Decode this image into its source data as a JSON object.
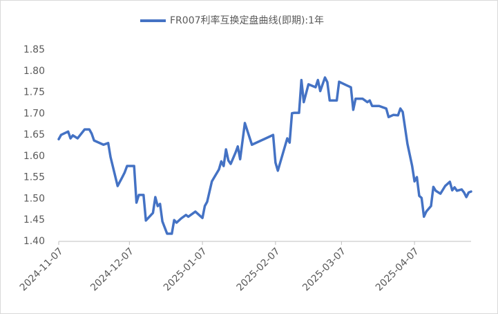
{
  "chart_data": {
    "type": "line",
    "x": [
      "2024-11-07",
      "2024-11-08",
      "2024-11-11",
      "2024-11-12",
      "2024-11-13",
      "2024-11-15",
      "2024-11-18",
      "2024-11-20",
      "2024-11-21",
      "2024-11-22",
      "2024-11-26",
      "2024-11-28",
      "2024-11-29",
      "2024-12-02",
      "2024-12-04",
      "2024-12-05",
      "2024-12-06",
      "2024-12-09",
      "2024-12-10",
      "2024-12-11",
      "2024-12-13",
      "2024-12-14",
      "2024-12-17",
      "2024-12-18",
      "2024-12-19",
      "2024-12-20",
      "2024-12-21",
      "2024-12-23",
      "2024-12-25",
      "2024-12-26",
      "2024-12-27",
      "2024-12-29",
      "2024-12-31",
      "2025-01-01",
      "2025-01-04",
      "2025-01-07",
      "2025-01-08",
      "2025-01-09",
      "2025-01-11",
      "2025-01-14",
      "2025-01-15",
      "2025-01-16",
      "2025-01-17",
      "2025-01-18",
      "2025-01-19",
      "2025-01-21",
      "2025-01-22",
      "2025-01-23",
      "2025-01-25",
      "2025-01-28",
      "2025-02-06",
      "2025-02-07",
      "2025-02-08",
      "2025-02-12",
      "2025-02-13",
      "2025-02-14",
      "2025-02-15",
      "2025-02-17",
      "2025-02-18",
      "2025-02-19",
      "2025-02-21",
      "2025-02-24",
      "2025-02-25",
      "2025-02-26",
      "2025-02-28",
      "2025-03-01",
      "2025-03-02",
      "2025-03-05",
      "2025-03-06",
      "2025-03-09",
      "2025-03-11",
      "2025-03-12",
      "2025-03-13",
      "2025-03-16",
      "2025-03-18",
      "2025-03-19",
      "2025-03-20",
      "2025-03-23",
      "2025-03-26",
      "2025-03-27",
      "2025-03-29",
      "2025-03-31",
      "2025-04-01",
      "2025-04-02",
      "2025-04-04",
      "2025-04-06",
      "2025-04-07",
      "2025-04-08",
      "2025-04-09",
      "2025-04-10",
      "2025-04-11",
      "2025-04-12",
      "2025-04-14",
      "2025-04-15",
      "2025-04-16",
      "2025-04-18",
      "2025-04-20",
      "2025-04-22",
      "2025-04-23",
      "2025-04-24",
      "2025-04-25",
      "2025-04-27",
      "2025-04-28",
      "2025-04-29",
      "2025-04-30",
      "2025-05-01"
    ],
    "series": [
      {
        "name": "FR007利率互换定盘曲线(即期):1年",
        "color": "#4472C4",
        "values": [
          1.64,
          1.65,
          1.658,
          1.642,
          1.649,
          1.642,
          1.663,
          1.663,
          1.653,
          1.637,
          1.627,
          1.631,
          1.598,
          1.53,
          1.551,
          1.562,
          1.577,
          1.577,
          1.491,
          1.509,
          1.509,
          1.449,
          1.467,
          1.504,
          1.483,
          1.488,
          1.447,
          1.418,
          1.418,
          1.45,
          1.444,
          1.454,
          1.462,
          1.458,
          1.47,
          1.455,
          1.483,
          1.493,
          1.541,
          1.569,
          1.588,
          1.577,
          1.616,
          1.59,
          1.582,
          1.608,
          1.623,
          1.593,
          1.678,
          1.627,
          1.65,
          1.585,
          1.566,
          1.642,
          1.632,
          1.701,
          1.702,
          1.702,
          1.779,
          1.727,
          1.769,
          1.762,
          1.779,
          1.753,
          1.785,
          1.774,
          1.731,
          1.731,
          1.775,
          1.767,
          1.762,
          1.709,
          1.735,
          1.735,
          1.727,
          1.731,
          1.718,
          1.718,
          1.712,
          1.692,
          1.697,
          1.696,
          1.712,
          1.704,
          1.629,
          1.577,
          1.541,
          1.551,
          1.507,
          1.502,
          1.458,
          1.47,
          1.483,
          1.528,
          1.519,
          1.512,
          1.53,
          1.54,
          1.52,
          1.527,
          1.519,
          1.522,
          1.515,
          1.504,
          1.515,
          1.517
        ]
      }
    ],
    "xlim": [
      "2024-11-07",
      "2025-05-01"
    ],
    "xticks": [
      "2024-11-07",
      "2024-12-07",
      "2025-01-07",
      "2025-02-07",
      "2025-03-07",
      "2025-04-07"
    ],
    "ylim": [
      1.4,
      1.85
    ],
    "yticks": [
      {
        "value": 1.4,
        "label": "1.40"
      },
      1.45,
      {
        "value": 1.5,
        "label": "1.50"
      },
      1.55,
      {
        "value": 1.6,
        "label": "1.60"
      },
      1.65,
      {
        "value": 1.7,
        "label": "1.70"
      },
      1.75,
      {
        "value": 1.8,
        "label": "1.80"
      },
      1.85
    ],
    "legend": "top",
    "grid": false
  }
}
